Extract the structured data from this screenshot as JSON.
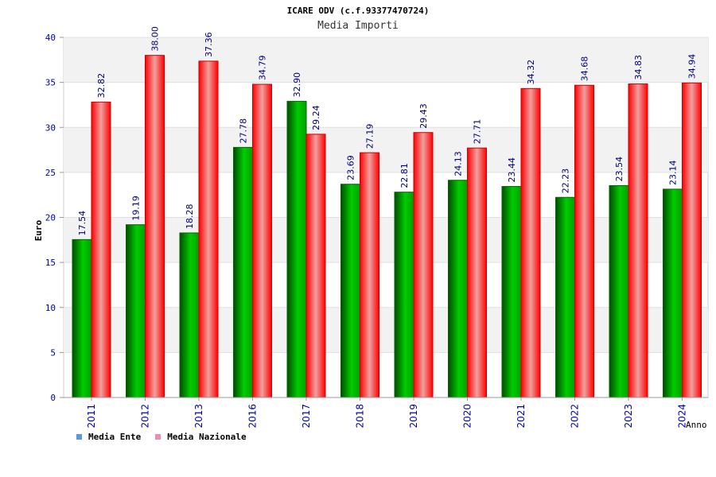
{
  "chart_data": {
    "type": "bar",
    "title": "ICARE ODV (c.f.93377470724)",
    "subtitle": "Media Importi",
    "xlabel": "Anno",
    "ylabel": "Euro",
    "ylim": [
      0,
      40
    ],
    "yticks": [
      0,
      5,
      10,
      15,
      20,
      25,
      30,
      35,
      40
    ],
    "grid": true,
    "legend_position": "bottom-left",
    "categories": [
      "2011",
      "2012",
      "2013",
      "2016",
      "2017",
      "2018",
      "2019",
      "2020",
      "2021",
      "2022",
      "2023",
      "2024"
    ],
    "series": [
      {
        "name": "Media Ente",
        "color": "#00aa00",
        "legend_color": "#5b9bd5",
        "values": [
          17.54,
          19.19,
          18.28,
          27.78,
          32.9,
          23.69,
          22.81,
          24.13,
          23.44,
          22.23,
          23.54,
          23.14
        ],
        "labels": [
          "17.54",
          "19.19",
          "18.28",
          "27.78",
          "32.90",
          "23.69",
          "22.81",
          "24.13",
          "23.44",
          "22.23",
          "23.54",
          "23.14"
        ]
      },
      {
        "name": "Media Nazionale",
        "color": "#ff1a1a",
        "legend_color": "#e88fb4",
        "values": [
          32.82,
          38.0,
          37.36,
          34.79,
          29.24,
          27.19,
          29.43,
          27.71,
          34.32,
          34.68,
          34.83,
          34.94
        ],
        "labels": [
          "32.82",
          "38.00",
          "37.36",
          "34.79",
          "29.24",
          "27.19",
          "29.43",
          "27.71",
          "34.32",
          "34.68",
          "34.83",
          "34.94"
        ]
      }
    ]
  }
}
